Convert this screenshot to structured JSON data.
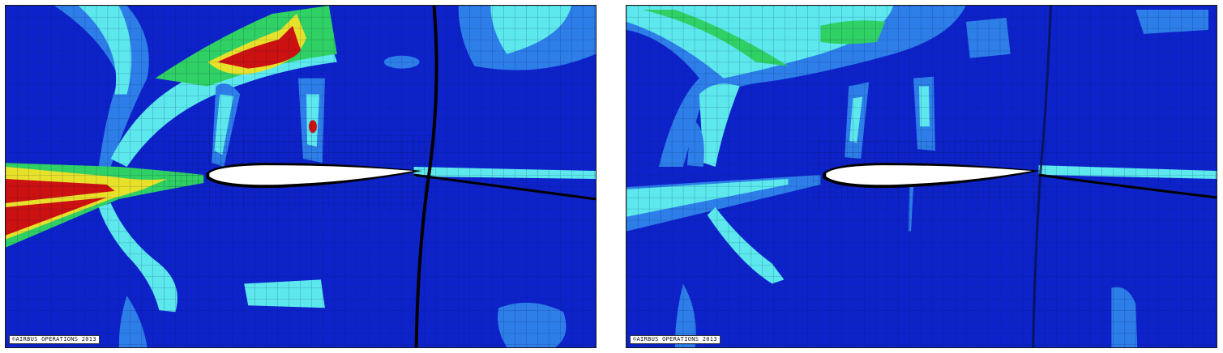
{
  "panels": [
    {
      "id": "left",
      "copyright": "©AIRBUS OPERATIONS 2013"
    },
    {
      "id": "right",
      "copyright": "©AIRBUS OPERATIONS 2013"
    }
  ],
  "colors": {
    "background_blue": "#0d23c9",
    "mid_blue": "#2d7ee8",
    "cyan": "#5ce8ec",
    "green": "#2fd064",
    "yellow": "#e8e12a",
    "red": "#cc1111",
    "mesh": "#06124a",
    "airfoil": "#ffffff"
  }
}
